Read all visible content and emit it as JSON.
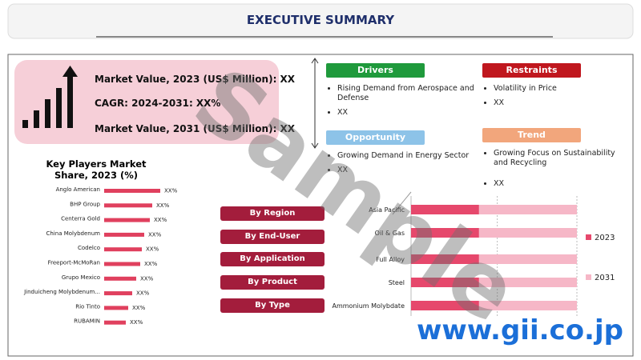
{
  "header": {
    "title": "EXECUTIVE SUMMARY"
  },
  "summary": [
    "Market Value, 2023 (US$ Million): XX",
    "CAGR: 2024-2031: XX%",
    "Market Value, 2031 (US$ Million): XX"
  ],
  "boxes": [
    {
      "title": "Drivers",
      "color": "#1f9a3c",
      "bullets": [
        "Rising Demand from Aerospace and Defense",
        "XX"
      ]
    },
    {
      "title": "Restraints",
      "color": "#c0171e",
      "bullets": [
        "Volatility in Price",
        "XX"
      ]
    },
    {
      "title": "Opportunity",
      "color": "#8dc3e8",
      "bullets": [
        "Growing Demand in Energy Sector",
        "XX"
      ]
    },
    {
      "title": "Trend",
      "color": "#f2a67c",
      "bullets": [
        "Growing Focus on Sustainability and Recycling",
        "XX"
      ]
    }
  ],
  "segments": [
    "By Region",
    "By End-User",
    "By Application",
    "By Product",
    "By Type"
  ],
  "chart_data": [
    {
      "type": "hbar",
      "title": "Key Players Market Share, 2023 (%)",
      "categories": [
        "Anglo American",
        "BHP Group",
        "Centerra Gold",
        "China Molybdenum",
        "Codelco",
        "Freeport-McMoRan",
        "Grupo Mexico",
        "Jinduicheng Molybdenum...",
        "Rio Tinto",
        "RUBAMIN"
      ],
      "values": [
        70,
        60,
        57,
        50,
        47,
        45,
        40,
        35,
        30,
        27
      ],
      "value_labels": [
        "XX%",
        "XX%",
        "XX%",
        "XX%",
        "XX%",
        "XX%",
        "XX%",
        "XX%",
        "XX%",
        "XX%"
      ],
      "color": "#e0405e",
      "xlim": [
        0,
        100
      ]
    },
    {
      "type": "stacked-hbar",
      "categories": [
        "Asia Pacific",
        "Oil & Gas",
        "Full Alloy",
        "Steel",
        "Ammonium Molybdate"
      ],
      "series": [
        {
          "name": "2023",
          "color": "#e6486c",
          "values": [
            41,
            41,
            41,
            41,
            41
          ]
        },
        {
          "name": "2031",
          "color": "#f6b7c7",
          "values": [
            59,
            59,
            59,
            59,
            59
          ]
        }
      ],
      "xlim": [
        0,
        100
      ],
      "xticks": [
        0,
        52,
        100
      ],
      "grid": true
    }
  ],
  "watermark": "Sample",
  "site": "www.gii.co.jp"
}
